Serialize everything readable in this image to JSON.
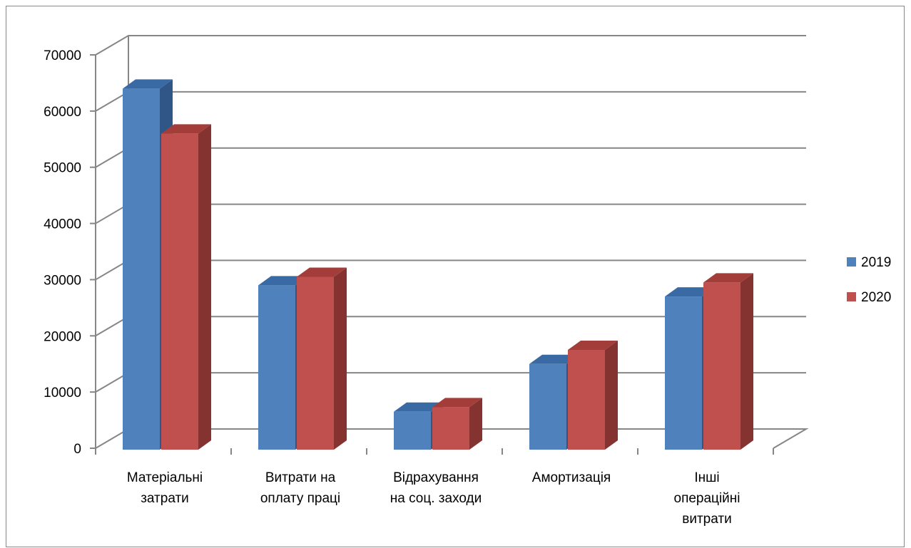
{
  "chart_data": {
    "type": "bar",
    "categories": [
      [
        "Матеріальні",
        "затрати"
      ],
      [
        "Витрати на",
        "оплату праці"
      ],
      [
        "Відрахування",
        "на соц. заходи"
      ],
      [
        "Амортизація"
      ],
      [
        "Інші",
        "операційні",
        "витрати"
      ]
    ],
    "series": [
      {
        "name": "2019",
        "values": [
          64000,
          29000,
          6500,
          15000,
          27000
        ],
        "color": "#4f81bd",
        "top_color": "#3a6aa3",
        "side_color": "#2f5687"
      },
      {
        "name": "2020",
        "values": [
          56000,
          30500,
          7300,
          17500,
          29500
        ],
        "color": "#c0504d",
        "top_color": "#a33d3a",
        "side_color": "#843330"
      }
    ],
    "ylim": [
      0,
      70000
    ],
    "yticks": [
      0,
      10000,
      20000,
      30000,
      40000,
      50000,
      60000,
      70000
    ],
    "grid": true,
    "legend": "right",
    "grid_color": "#868686"
  }
}
